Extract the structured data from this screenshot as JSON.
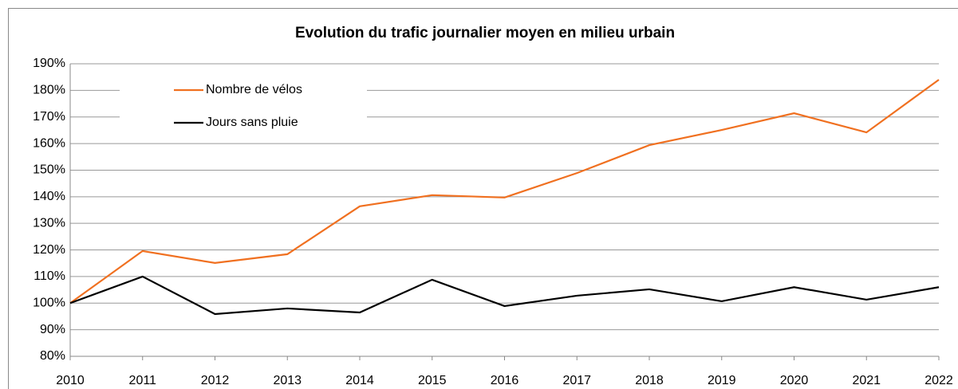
{
  "chart_data": {
    "type": "line",
    "title": "Evolution du trafic journalier moyen en milieu urbain",
    "x": [
      2010,
      2011,
      2012,
      2013,
      2014,
      2015,
      2016,
      2017,
      2018,
      2019,
      2020,
      2021,
      2022
    ],
    "xlim": [
      2010,
      2022
    ],
    "xticks": [
      2010,
      2011,
      2012,
      2013,
      2014,
      2015,
      2016,
      2017,
      2018,
      2019,
      2020,
      2021,
      2022
    ],
    "ylim": [
      80,
      190
    ],
    "yticks": [
      {
        "value": 80,
        "label": "80%"
      },
      {
        "value": 90,
        "label": "90%"
      },
      {
        "value": 100,
        "label": "100%"
      },
      {
        "value": 110,
        "label": "110%"
      },
      {
        "value": 120,
        "label": "120%"
      },
      {
        "value": 130,
        "label": "130%"
      },
      {
        "value": 140,
        "label": "140%"
      },
      {
        "value": 150,
        "label": "150%"
      },
      {
        "value": 160,
        "label": "160%"
      },
      {
        "value": 170,
        "label": "170%"
      },
      {
        "value": 180,
        "label": "180%"
      },
      {
        "value": 190,
        "label": "190%"
      }
    ],
    "grid": true,
    "legend": "top-left",
    "series": [
      {
        "name": "Nombre de vélos",
        "color": "#f07020",
        "values": [
          100,
          119.6,
          115.1,
          118.4,
          136.4,
          140.6,
          139.7,
          148.9,
          159.4,
          165.1,
          171.4,
          164.2,
          184
        ]
      },
      {
        "name": "Jours sans pluie",
        "color": "#000000",
        "values": [
          100,
          110,
          95.9,
          98,
          96.5,
          108.8,
          98.9,
          102.8,
          105.2,
          100.7,
          106,
          101.3,
          106
        ]
      }
    ]
  }
}
